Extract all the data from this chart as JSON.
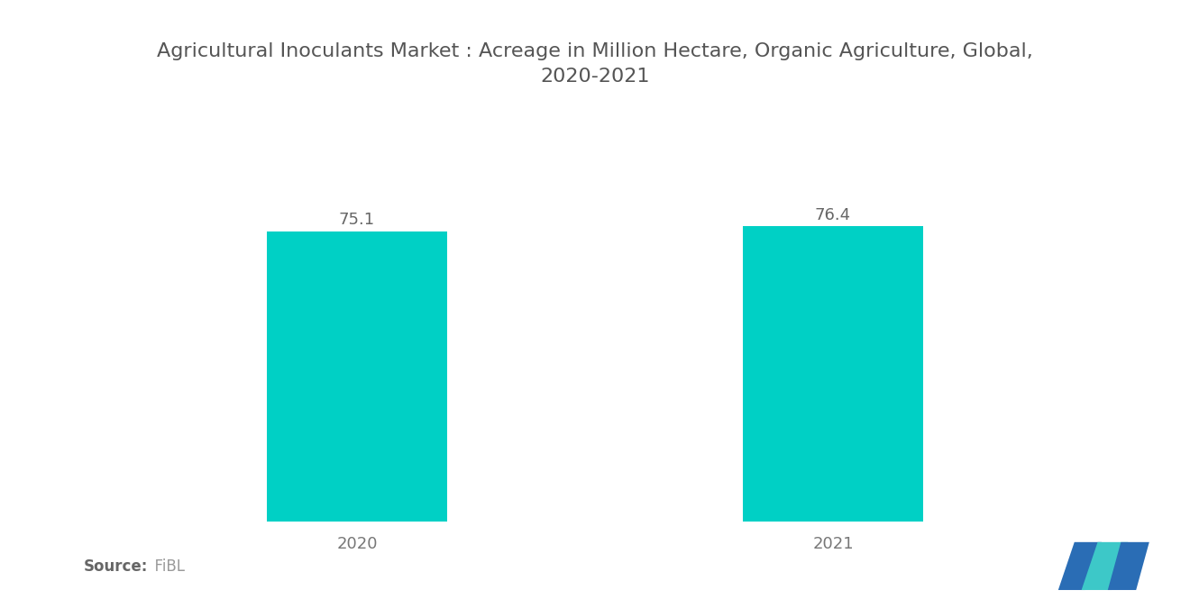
{
  "title": "Agricultural Inoculants Market : Acreage in Million Hectare, Organic Agriculture, Global,\n2020-2021",
  "categories": [
    "2020",
    "2021"
  ],
  "values": [
    75.1,
    76.4
  ],
  "bar_color": "#00D0C5",
  "background_color": "#ffffff",
  "ylim": [
    0,
    90
  ],
  "bar_width": 0.38,
  "title_fontsize": 16,
  "label_fontsize": 13,
  "annotation_fontsize": 13,
  "source_bold": "Source:",
  "source_normal": "  FiBL",
  "source_fontsize": 12,
  "title_color": "#555555",
  "tick_color": "#777777",
  "annotation_color": "#666666"
}
